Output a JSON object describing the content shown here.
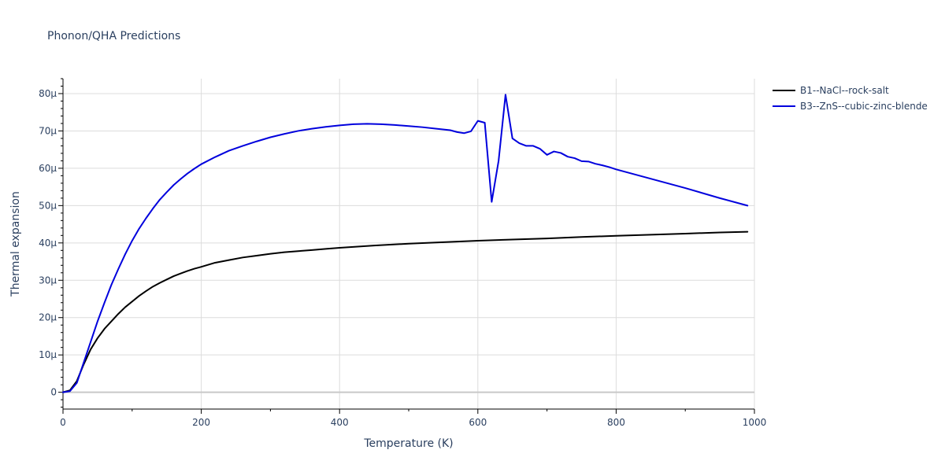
{
  "chart_data": {
    "type": "line",
    "title": "Phonon/QHA Predictions",
    "xlabel": "Temperature (K)",
    "ylabel": "Thermal expansion",
    "xlim": [
      0,
      1000
    ],
    "ylim": [
      -4.5e-06,
      8.4e-05
    ],
    "x_ticks": [
      0,
      200,
      400,
      600,
      800,
      1000
    ],
    "x_tick_labels": [
      "0",
      "200",
      "400",
      "600",
      "800",
      "1000"
    ],
    "y_ticks": [
      0,
      1e-05,
      2e-05,
      3e-05,
      4e-05,
      5e-05,
      6e-05,
      7e-05,
      8e-05
    ],
    "y_tick_labels": [
      "0",
      "10μ",
      "20μ",
      "30μ",
      "40μ",
      "50μ",
      "60μ",
      "70μ",
      "80μ"
    ],
    "grid": true,
    "legend_position": "top-right",
    "series": [
      {
        "name": "B1--NaCl--rock-salt",
        "color": "#000000",
        "x": [
          0,
          10,
          20,
          30,
          40,
          50,
          60,
          70,
          80,
          90,
          100,
          110,
          120,
          130,
          140,
          150,
          160,
          170,
          180,
          190,
          200,
          220,
          240,
          260,
          280,
          300,
          320,
          340,
          360,
          380,
          400,
          450,
          500,
          550,
          600,
          650,
          700,
          750,
          800,
          850,
          900,
          950,
          990
        ],
        "y": [
          0,
          5e-07,
          3e-06,
          7.5e-06,
          1.15e-05,
          1.45e-05,
          1.7e-05,
          1.9e-05,
          2.1e-05,
          2.28e-05,
          2.43e-05,
          2.58e-05,
          2.71e-05,
          2.83e-05,
          2.93e-05,
          3.02e-05,
          3.11e-05,
          3.18e-05,
          3.25e-05,
          3.31e-05,
          3.36e-05,
          3.47e-05,
          3.54e-05,
          3.61e-05,
          3.66e-05,
          3.71e-05,
          3.75e-05,
          3.78e-05,
          3.81e-05,
          3.84e-05,
          3.87e-05,
          3.93e-05,
          3.98e-05,
          4.02e-05,
          4.06e-05,
          4.09e-05,
          4.12e-05,
          4.16e-05,
          4.19e-05,
          4.22e-05,
          4.25e-05,
          4.28e-05,
          4.3e-05
        ]
      },
      {
        "name": "B3--ZnS--cubic-zinc-blende",
        "color": "#0000dd",
        "x": [
          0,
          10,
          20,
          30,
          40,
          50,
          60,
          70,
          80,
          90,
          100,
          110,
          120,
          130,
          140,
          150,
          160,
          170,
          180,
          190,
          200,
          220,
          240,
          260,
          280,
          300,
          320,
          340,
          360,
          380,
          400,
          420,
          440,
          460,
          480,
          500,
          520,
          540,
          560,
          570,
          580,
          590,
          600,
          610,
          620,
          630,
          640,
          650,
          660,
          670,
          680,
          690,
          700,
          710,
          720,
          730,
          740,
          750,
          760,
          770,
          780,
          790,
          800,
          850,
          900,
          950,
          990
        ],
        "y": [
          0,
          3e-07,
          2.5e-06,
          8e-06,
          1.35e-05,
          1.9e-05,
          2.4e-05,
          2.88e-05,
          3.3e-05,
          3.7e-05,
          4.06e-05,
          4.38e-05,
          4.66e-05,
          4.92e-05,
          5.16e-05,
          5.36e-05,
          5.55e-05,
          5.71e-05,
          5.86e-05,
          5.99e-05,
          6.11e-05,
          6.3e-05,
          6.47e-05,
          6.6e-05,
          6.72e-05,
          6.83e-05,
          6.92e-05,
          7e-05,
          7.06e-05,
          7.11e-05,
          7.15e-05,
          7.18e-05,
          7.19e-05,
          7.18e-05,
          7.16e-05,
          7.13e-05,
          7.1e-05,
          7.06e-05,
          7.02e-05,
          6.97e-05,
          6.94e-05,
          6.99e-05,
          7.27e-05,
          7.22e-05,
          5.1e-05,
          6.2e-05,
          7.97e-05,
          6.8e-05,
          6.67e-05,
          6.6e-05,
          6.6e-05,
          6.52e-05,
          6.36e-05,
          6.45e-05,
          6.41e-05,
          6.31e-05,
          6.27e-05,
          6.19e-05,
          6.18e-05,
          6.12e-05,
          6.08e-05,
          6.03e-05,
          5.97e-05,
          5.72e-05,
          5.47e-05,
          5.2e-05,
          5e-05
        ]
      }
    ]
  }
}
